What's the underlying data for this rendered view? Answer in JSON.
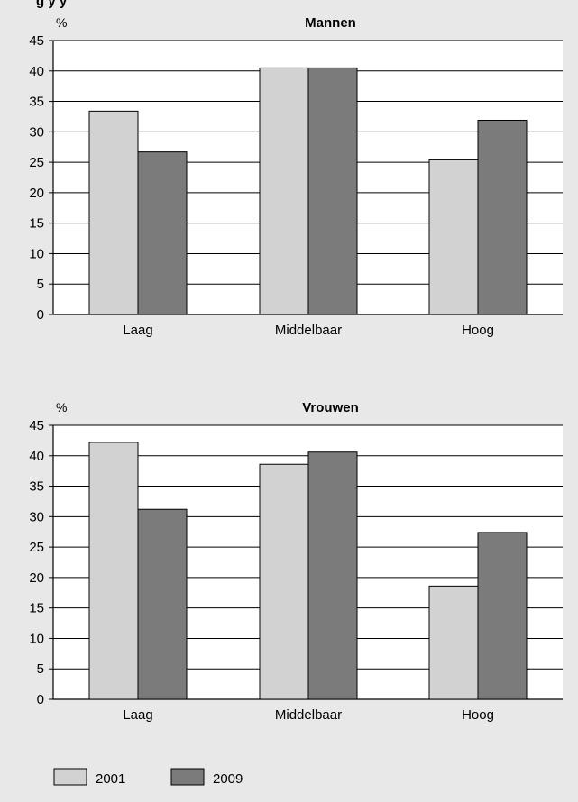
{
  "header_fragment": "g          y          y",
  "colors": {
    "background": "#e8e8e8",
    "plot_background": "#ffffff",
    "series_2001": "#d2d2d2",
    "series_2009": "#7b7b7b",
    "bar_outline": "#000000"
  },
  "legend": {
    "position": "bottom-left",
    "items": [
      {
        "label": "2001",
        "color": "#d2d2d2"
      },
      {
        "label": "2009",
        "color": "#7b7b7b"
      }
    ]
  },
  "chart_data": [
    {
      "type": "bar",
      "title": "Mannen",
      "ylabel": "%",
      "xlabel": "",
      "categories": [
        "Laag",
        "Middelbaar",
        "Hoog"
      ],
      "series": [
        {
          "name": "2001",
          "values": [
            33.4,
            40.5,
            25.4
          ]
        },
        {
          "name": "2009",
          "values": [
            26.7,
            40.5,
            31.9
          ]
        }
      ],
      "ylim": [
        0,
        45
      ],
      "yticks": [
        0,
        5,
        10,
        15,
        20,
        25,
        30,
        35,
        40,
        45
      ],
      "grid": true
    },
    {
      "type": "bar",
      "title": "Vrouwen",
      "ylabel": "%",
      "xlabel": "",
      "categories": [
        "Laag",
        "Middelbaar",
        "Hoog"
      ],
      "series": [
        {
          "name": "2001",
          "values": [
            42.2,
            38.6,
            18.6
          ]
        },
        {
          "name": "2009",
          "values": [
            31.2,
            40.6,
            27.4
          ]
        }
      ],
      "ylim": [
        0,
        45
      ],
      "yticks": [
        0,
        5,
        10,
        15,
        20,
        25,
        30,
        35,
        40,
        45
      ],
      "grid": true
    }
  ]
}
